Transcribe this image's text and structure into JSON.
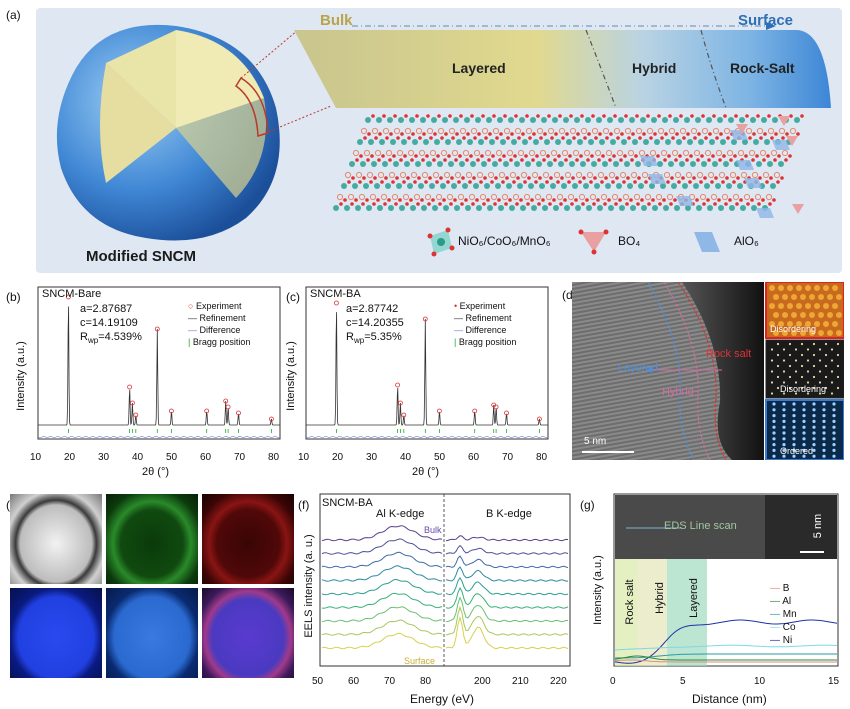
{
  "panel_a": {
    "label": "(a)",
    "bulk": "Bulk",
    "surface": "Surface",
    "layered": "Layered",
    "hybrid": "Hybrid",
    "rock_salt": "Rock-Salt",
    "particle_caption": "Modified SNCM",
    "legend_octa": "NiO₆/CoO₆/MnO₆",
    "legend_bo4": "BO₄",
    "legend_alo6": "AlO₆",
    "colors": {
      "bg": "#dde6f3",
      "layered": "#cfc98e",
      "surface": "#4d8fd6"
    }
  },
  "panel_b": {
    "label": "(b)",
    "sample": "SNCM-Bare",
    "a": "a=2.87687",
    "c": "c=14.19109",
    "rwp": "Rᵂᵖ=4.539%",
    "rwp_main": "R",
    "rwp_sub": "wp",
    "rwp_val": "=4.539%",
    "legend": [
      "Experiment",
      "Refinement",
      "Difference",
      "Bragg position"
    ],
    "xlabel": "2θ (°)",
    "ylabel": "Intensity (a.u.)",
    "xticks": [
      "10",
      "20",
      "30",
      "40",
      "50",
      "60",
      "70",
      "80"
    ]
  },
  "panel_c": {
    "label": "(c)",
    "sample": "SNCM-BA",
    "a": "a=2.87742",
    "c": "c=14.20355",
    "rwp_main": "R",
    "rwp_sub": "wp",
    "rwp_val": "=5.35%",
    "legend": [
      "Experiment",
      "Refinement",
      "Difference",
      "Bragg position"
    ],
    "xlabel": "2θ (°)",
    "ylabel": "Intensity (a.u.)",
    "xticks": [
      "10",
      "20",
      "30",
      "40",
      "50",
      "60",
      "70",
      "80"
    ]
  },
  "panel_d": {
    "label": "(d)",
    "layered": "Layered",
    "rock_salt": "Rock salt",
    "hybrid": "Hybrid",
    "scale": "5 nm",
    "insets": [
      "Disordering",
      "Disordering",
      "Ordered"
    ]
  },
  "panel_e": {
    "label": "(e)"
  },
  "panel_f": {
    "label": "(f)",
    "sample": "SNCM-BA",
    "al_edge": "Al K-edge",
    "b_edge": "B K-edge",
    "bulk": "Bulk",
    "surface": "Surface",
    "xlabel": "Energy (eV)",
    "ylabel": "EELS intensity (a. u.)",
    "xticks": [
      "50",
      "60",
      "70",
      "80",
      "200",
      "210",
      "220"
    ]
  },
  "panel_g": {
    "label": "(g)",
    "eds": "EDS Line scan",
    "scale": "5 nm",
    "regions": [
      "Rock salt",
      "Hybrid",
      "Layered"
    ],
    "legend": [
      "B",
      "Al",
      "Mn",
      "Co",
      "Ni"
    ],
    "legend_colors": [
      "#e08a8a",
      "#2e8b2e",
      "#2a9aa8",
      "#7fd6e8",
      "#1f2fa8"
    ],
    "xlabel": "Distance (nm)",
    "ylabel": "Intensity (a.u.)",
    "xticks": [
      "0",
      "5",
      "10",
      "15"
    ]
  }
}
